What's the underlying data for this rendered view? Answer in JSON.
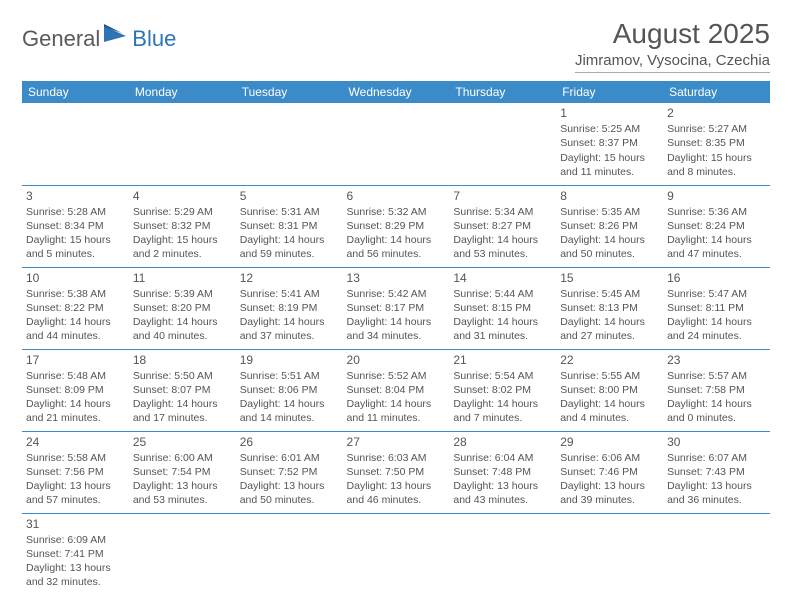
{
  "logo": {
    "general": "General",
    "blue": "Blue"
  },
  "title": "August 2025",
  "location": "Jimramov, Vysocina, Czechia",
  "header_bg": "#3b8bc8",
  "header_fg": "#ffffff",
  "weekdays": [
    "Sunday",
    "Monday",
    "Tuesday",
    "Wednesday",
    "Thursday",
    "Friday",
    "Saturday"
  ],
  "weeks": [
    [
      null,
      null,
      null,
      null,
      null,
      {
        "n": "1",
        "sr": "Sunrise: 5:25 AM",
        "ss": "Sunset: 8:37 PM",
        "d1": "Daylight: 15 hours",
        "d2": "and 11 minutes."
      },
      {
        "n": "2",
        "sr": "Sunrise: 5:27 AM",
        "ss": "Sunset: 8:35 PM",
        "d1": "Daylight: 15 hours",
        "d2": "and 8 minutes."
      }
    ],
    [
      {
        "n": "3",
        "sr": "Sunrise: 5:28 AM",
        "ss": "Sunset: 8:34 PM",
        "d1": "Daylight: 15 hours",
        "d2": "and 5 minutes."
      },
      {
        "n": "4",
        "sr": "Sunrise: 5:29 AM",
        "ss": "Sunset: 8:32 PM",
        "d1": "Daylight: 15 hours",
        "d2": "and 2 minutes."
      },
      {
        "n": "5",
        "sr": "Sunrise: 5:31 AM",
        "ss": "Sunset: 8:31 PM",
        "d1": "Daylight: 14 hours",
        "d2": "and 59 minutes."
      },
      {
        "n": "6",
        "sr": "Sunrise: 5:32 AM",
        "ss": "Sunset: 8:29 PM",
        "d1": "Daylight: 14 hours",
        "d2": "and 56 minutes."
      },
      {
        "n": "7",
        "sr": "Sunrise: 5:34 AM",
        "ss": "Sunset: 8:27 PM",
        "d1": "Daylight: 14 hours",
        "d2": "and 53 minutes."
      },
      {
        "n": "8",
        "sr": "Sunrise: 5:35 AM",
        "ss": "Sunset: 8:26 PM",
        "d1": "Daylight: 14 hours",
        "d2": "and 50 minutes."
      },
      {
        "n": "9",
        "sr": "Sunrise: 5:36 AM",
        "ss": "Sunset: 8:24 PM",
        "d1": "Daylight: 14 hours",
        "d2": "and 47 minutes."
      }
    ],
    [
      {
        "n": "10",
        "sr": "Sunrise: 5:38 AM",
        "ss": "Sunset: 8:22 PM",
        "d1": "Daylight: 14 hours",
        "d2": "and 44 minutes."
      },
      {
        "n": "11",
        "sr": "Sunrise: 5:39 AM",
        "ss": "Sunset: 8:20 PM",
        "d1": "Daylight: 14 hours",
        "d2": "and 40 minutes."
      },
      {
        "n": "12",
        "sr": "Sunrise: 5:41 AM",
        "ss": "Sunset: 8:19 PM",
        "d1": "Daylight: 14 hours",
        "d2": "and 37 minutes."
      },
      {
        "n": "13",
        "sr": "Sunrise: 5:42 AM",
        "ss": "Sunset: 8:17 PM",
        "d1": "Daylight: 14 hours",
        "d2": "and 34 minutes."
      },
      {
        "n": "14",
        "sr": "Sunrise: 5:44 AM",
        "ss": "Sunset: 8:15 PM",
        "d1": "Daylight: 14 hours",
        "d2": "and 31 minutes."
      },
      {
        "n": "15",
        "sr": "Sunrise: 5:45 AM",
        "ss": "Sunset: 8:13 PM",
        "d1": "Daylight: 14 hours",
        "d2": "and 27 minutes."
      },
      {
        "n": "16",
        "sr": "Sunrise: 5:47 AM",
        "ss": "Sunset: 8:11 PM",
        "d1": "Daylight: 14 hours",
        "d2": "and 24 minutes."
      }
    ],
    [
      {
        "n": "17",
        "sr": "Sunrise: 5:48 AM",
        "ss": "Sunset: 8:09 PM",
        "d1": "Daylight: 14 hours",
        "d2": "and 21 minutes."
      },
      {
        "n": "18",
        "sr": "Sunrise: 5:50 AM",
        "ss": "Sunset: 8:07 PM",
        "d1": "Daylight: 14 hours",
        "d2": "and 17 minutes."
      },
      {
        "n": "19",
        "sr": "Sunrise: 5:51 AM",
        "ss": "Sunset: 8:06 PM",
        "d1": "Daylight: 14 hours",
        "d2": "and 14 minutes."
      },
      {
        "n": "20",
        "sr": "Sunrise: 5:52 AM",
        "ss": "Sunset: 8:04 PM",
        "d1": "Daylight: 14 hours",
        "d2": "and 11 minutes."
      },
      {
        "n": "21",
        "sr": "Sunrise: 5:54 AM",
        "ss": "Sunset: 8:02 PM",
        "d1": "Daylight: 14 hours",
        "d2": "and 7 minutes."
      },
      {
        "n": "22",
        "sr": "Sunrise: 5:55 AM",
        "ss": "Sunset: 8:00 PM",
        "d1": "Daylight: 14 hours",
        "d2": "and 4 minutes."
      },
      {
        "n": "23",
        "sr": "Sunrise: 5:57 AM",
        "ss": "Sunset: 7:58 PM",
        "d1": "Daylight: 14 hours",
        "d2": "and 0 minutes."
      }
    ],
    [
      {
        "n": "24",
        "sr": "Sunrise: 5:58 AM",
        "ss": "Sunset: 7:56 PM",
        "d1": "Daylight: 13 hours",
        "d2": "and 57 minutes."
      },
      {
        "n": "25",
        "sr": "Sunrise: 6:00 AM",
        "ss": "Sunset: 7:54 PM",
        "d1": "Daylight: 13 hours",
        "d2": "and 53 minutes."
      },
      {
        "n": "26",
        "sr": "Sunrise: 6:01 AM",
        "ss": "Sunset: 7:52 PM",
        "d1": "Daylight: 13 hours",
        "d2": "and 50 minutes."
      },
      {
        "n": "27",
        "sr": "Sunrise: 6:03 AM",
        "ss": "Sunset: 7:50 PM",
        "d1": "Daylight: 13 hours",
        "d2": "and 46 minutes."
      },
      {
        "n": "28",
        "sr": "Sunrise: 6:04 AM",
        "ss": "Sunset: 7:48 PM",
        "d1": "Daylight: 13 hours",
        "d2": "and 43 minutes."
      },
      {
        "n": "29",
        "sr": "Sunrise: 6:06 AM",
        "ss": "Sunset: 7:46 PM",
        "d1": "Daylight: 13 hours",
        "d2": "and 39 minutes."
      },
      {
        "n": "30",
        "sr": "Sunrise: 6:07 AM",
        "ss": "Sunset: 7:43 PM",
        "d1": "Daylight: 13 hours",
        "d2": "and 36 minutes."
      }
    ],
    [
      {
        "n": "31",
        "sr": "Sunrise: 6:09 AM",
        "ss": "Sunset: 7:41 PM",
        "d1": "Daylight: 13 hours",
        "d2": "and 32 minutes."
      },
      null,
      null,
      null,
      null,
      null,
      null
    ]
  ]
}
